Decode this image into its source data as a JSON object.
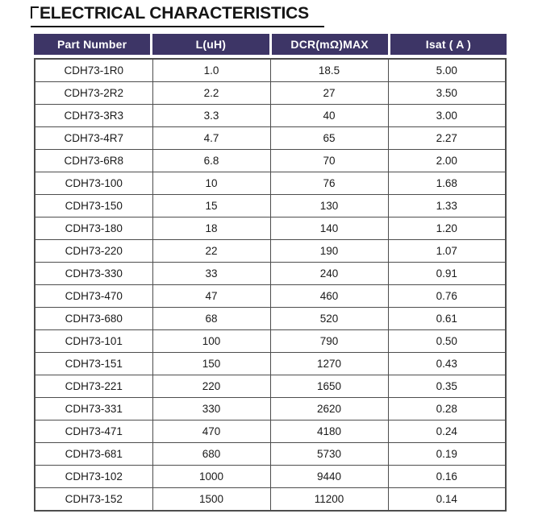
{
  "title": {
    "text": "ELECTRICAL CHARACTERISTICS"
  },
  "table": {
    "columns": [
      "Part Number",
      "L(uH)",
      "DCR(mΩ)MAX",
      "Isat ( A )"
    ],
    "column_keys": [
      "part-number",
      "inductance",
      "dcr-max",
      "isat"
    ],
    "rows": [
      [
        "CDH73-1R0",
        "1.0",
        "18.5",
        "5.00"
      ],
      [
        "CDH73-2R2",
        "2.2",
        "27",
        "3.50"
      ],
      [
        "CDH73-3R3",
        "3.3",
        "40",
        "3.00"
      ],
      [
        "CDH73-4R7",
        "4.7",
        "65",
        "2.27"
      ],
      [
        "CDH73-6R8",
        "6.8",
        "70",
        "2.00"
      ],
      [
        "CDH73-100",
        "10",
        "76",
        "1.68"
      ],
      [
        "CDH73-150",
        "15",
        "130",
        "1.33"
      ],
      [
        "CDH73-180",
        "18",
        "140",
        "1.20"
      ],
      [
        "CDH73-220",
        "22",
        "190",
        "1.07"
      ],
      [
        "CDH73-330",
        "33",
        "240",
        "0.91"
      ],
      [
        "CDH73-470",
        "47",
        "460",
        "0.76"
      ],
      [
        "CDH73-680",
        "68",
        "520",
        "0.61"
      ],
      [
        "CDH73-101",
        "100",
        "790",
        "0.50"
      ],
      [
        "CDH73-151",
        "150",
        "1270",
        "0.43"
      ],
      [
        "CDH73-221",
        "220",
        "1650",
        "0.35"
      ],
      [
        "CDH73-331",
        "330",
        "2620",
        "0.28"
      ],
      [
        "CDH73-471",
        "470",
        "4180",
        "0.24"
      ],
      [
        "CDH73-681",
        "680",
        "5730",
        "0.19"
      ],
      [
        "CDH73-102",
        "1000",
        "9440",
        "0.16"
      ],
      [
        "CDH73-152",
        "1500",
        "11200",
        "0.14"
      ]
    ]
  },
  "colors": {
    "header_bg": "#3d3566",
    "header_text": "#ffffff",
    "table_border": "#4d4d4d",
    "title_text": "#151515",
    "body_text": "#1a1a1a",
    "page_bg": "#ffffff"
  }
}
